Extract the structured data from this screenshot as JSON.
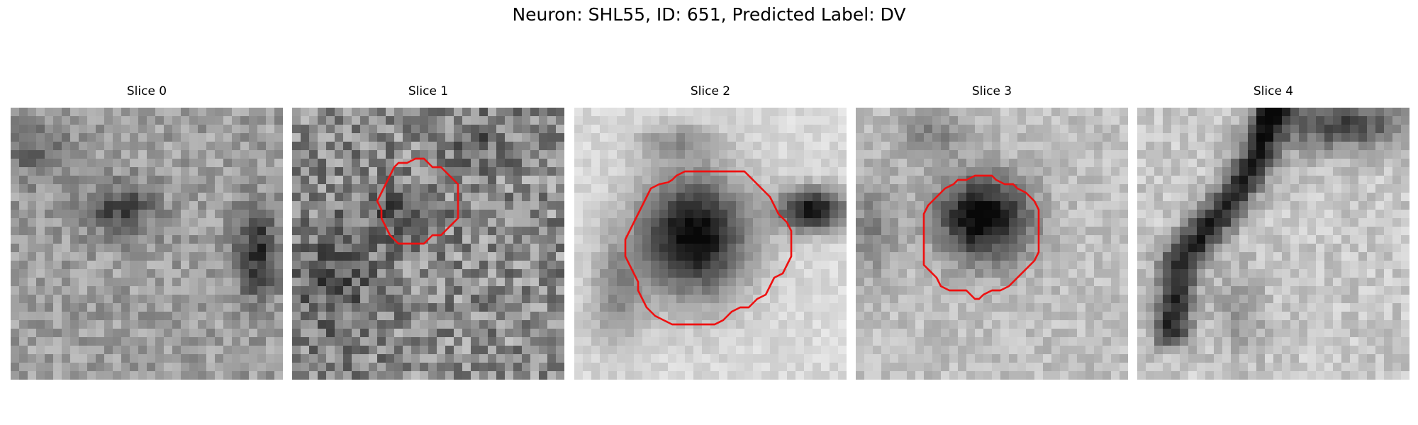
{
  "figure": {
    "title": "Neuron: SHL55, ID: 651, Predicted Label: DV"
  },
  "panels": [
    {
      "title": "Slice 0",
      "has_contour": false
    },
    {
      "title": "Slice 1",
      "has_contour": true
    },
    {
      "title": "Slice 2",
      "has_contour": true
    },
    {
      "title": "Slice 3",
      "has_contour": true
    },
    {
      "title": "Slice 4",
      "has_contour": false
    }
  ],
  "colors": {
    "contour": "#ee1111",
    "background": "#ffffff"
  }
}
